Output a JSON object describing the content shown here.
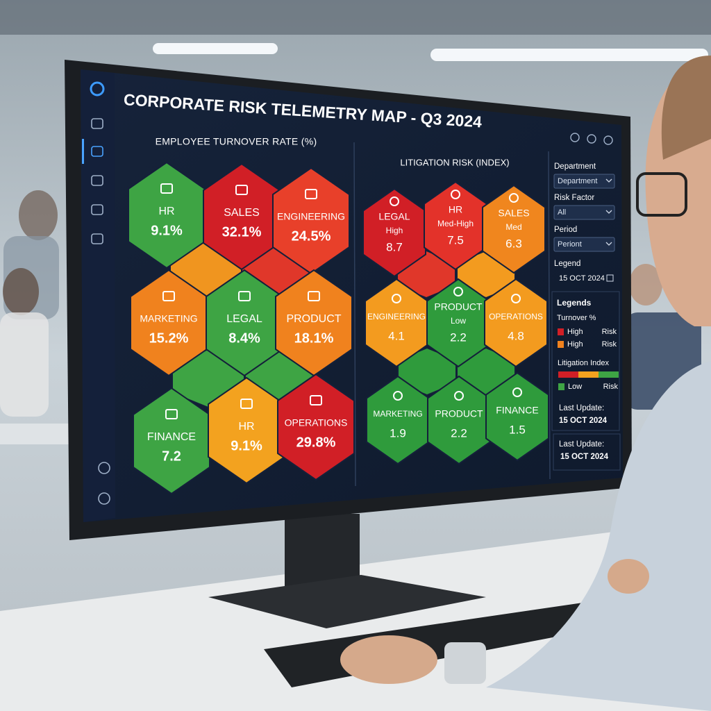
{
  "header": {
    "title": "CORPORATE RISK TELEMETRY MAP - Q3 2024"
  },
  "turnover": {
    "title": "EMPLOYEE TURNOVER RATE (%)",
    "tiles": [
      {
        "label": "HR",
        "value": "9.1%",
        "color": "#3ea444"
      },
      {
        "label": "SALES",
        "value": "32.1%",
        "color": "#d11f26"
      },
      {
        "label": "ENGINEERING",
        "value": "24.5%",
        "color": "#e8402a"
      },
      {
        "label": "MARKETING",
        "value": "15.2%",
        "color": "#f0821e"
      },
      {
        "label": "LEGAL",
        "value": "8.4%",
        "color": "#3ea444"
      },
      {
        "label": "PRODUCT",
        "value": "18.1%",
        "color": "#f0821e"
      },
      {
        "label": "FINANCE",
        "value": "7.2",
        "color": "#3ea444"
      },
      {
        "label": "HR",
        "value": "9.1%",
        "color": "#f3a21f"
      },
      {
        "label": "OPERATIONS",
        "value": "29.8%",
        "color": "#d11f26"
      }
    ]
  },
  "litigation": {
    "title": "LITIGATION RISK (INDEX)",
    "tiles": [
      {
        "label": "LEGAL",
        "level": "High",
        "value": "8.7",
        "color": "#d11f26"
      },
      {
        "label": "HR",
        "level": "Med-High",
        "value": "7.5",
        "color": "#e3322a"
      },
      {
        "label": "SALES",
        "level": "Med",
        "value": "6.3",
        "color": "#f0861e"
      },
      {
        "label": "ENGINEERING",
        "value": "4.1",
        "color": "#f39b1f"
      },
      {
        "label": "PRODUCT",
        "level": "Low",
        "value": "2.2",
        "color": "#2f9b3c"
      },
      {
        "label": "OPERATIONS",
        "value": "4.8",
        "color": "#f39b1f"
      },
      {
        "label": "MARKETING",
        "value": "1.9",
        "color": "#2f9b3c"
      },
      {
        "label": "PRODUCT",
        "value": "2.2",
        "color": "#2f9b3c"
      },
      {
        "label": "FINANCE",
        "value": "1.5",
        "color": "#2f9b3c"
      }
    ]
  },
  "filters": [
    {
      "label": "Department",
      "selected": "Department"
    },
    {
      "label": "Risk Factor",
      "selected": "All"
    },
    {
      "label": "Period",
      "selected": "Periont"
    },
    {
      "label": "Legend",
      "selected": "15 OCT 2024"
    }
  ],
  "legends": {
    "title": "Legends",
    "turnover_title": "Turnover %",
    "turnover_items": [
      {
        "left": "High",
        "right": "Risk",
        "color": "#d11f26"
      },
      {
        "left": "High",
        "right": "Risk",
        "color": "#f0821e"
      }
    ],
    "litigation_title": "Litigation Index",
    "litigation_items": [
      {
        "left": "Low",
        "right": "Risk",
        "color": "#3ea444"
      }
    ],
    "last_update_label": "Last Update:",
    "last_update": "15 OCT 2024"
  },
  "footer": {
    "last_update_label": "Last Update:",
    "last_update": "15 OCT 2024"
  }
}
